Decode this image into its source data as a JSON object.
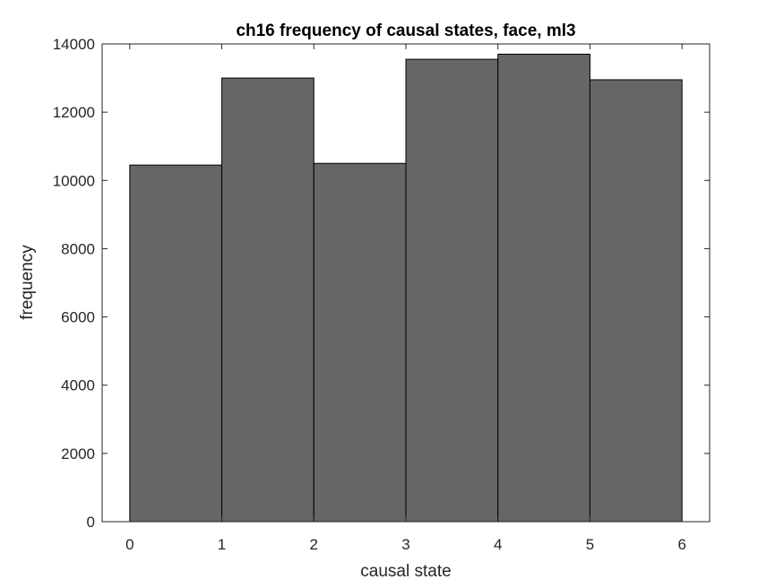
{
  "chart_data": {
    "type": "bar",
    "subtype": "histogram",
    "title": "ch16 frequency of causal states, face, ml3",
    "xlabel": "causal state",
    "ylabel": "frequency",
    "bin_edges": [
      0,
      1,
      2,
      3,
      4,
      5,
      6
    ],
    "values": [
      10450,
      13000,
      10500,
      13550,
      13700,
      12950
    ],
    "xlim": [
      -0.3,
      6.3
    ],
    "ylim": [
      0,
      14000
    ],
    "xticks": [
      0,
      1,
      2,
      3,
      4,
      5,
      6
    ],
    "yticks": [
      0,
      2000,
      4000,
      6000,
      8000,
      10000,
      12000,
      14000
    ],
    "grid": false,
    "colors": {
      "bar_fill": "#666666",
      "bar_edge": "#000000",
      "axis": "#262626"
    }
  }
}
